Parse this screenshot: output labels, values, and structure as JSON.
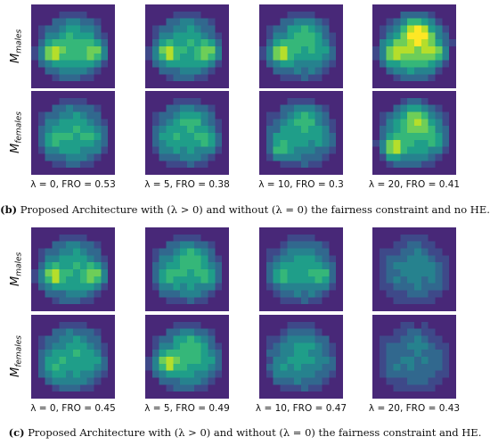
{
  "panels": [
    {
      "id": "b",
      "row_labels": [
        {
          "base": "M",
          "sub": "males"
        },
        {
          "base": "M",
          "sub": "females"
        }
      ],
      "col_labels": [
        "λ = 0, FRO = 0.53",
        "λ = 5, FRO = 0.38",
        "λ = 10, FRO = 0.3",
        "λ = 20, FRO = 0.41"
      ],
      "caption_tag": "(b)",
      "caption_text": "Proposed Architecture with (λ > 0) and without (λ = 0) the fairness constraint and no HE."
    },
    {
      "id": "c",
      "row_labels": [
        {
          "base": "M",
          "sub": "males"
        },
        {
          "base": "M",
          "sub": "females"
        }
      ],
      "col_labels": [
        "λ = 0, FRO = 0.45",
        "λ = 5, FRO = 0.49",
        "λ = 10, FRO = 0.47",
        "λ = 20, FRO = 0.43"
      ],
      "caption_tag": "(c)",
      "caption_text": "Proposed Architecture with (λ > 0) and without (λ = 0) the fairness constraint and HE."
    }
  ],
  "colormap": [
    "#440154",
    "#482878",
    "#3e4989",
    "#31688e",
    "#26828e",
    "#1f9e89",
    "#35b779",
    "#6ece58",
    "#b5de2b",
    "#fde725"
  ]
}
